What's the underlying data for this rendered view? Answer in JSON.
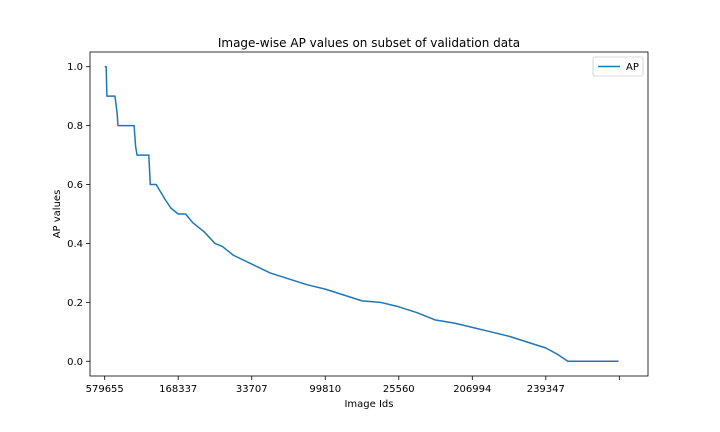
{
  "chart_data": {
    "type": "line",
    "title": "Image-wise AP values on subset of validation data",
    "xlabel": "Image Ids",
    "ylabel": "AP values",
    "categories": [
      "579655",
      "168337",
      "33707",
      "99810",
      "25560",
      "206994",
      "239347",
      ""
    ],
    "ylim": [
      -0.05,
      1.05
    ],
    "xlim": [
      -20,
      739
    ],
    "yticks": [
      0.0,
      0.2,
      0.4,
      0.6,
      0.8,
      1.0
    ],
    "ytick_labels": [
      "0.0",
      "0.2",
      "0.4",
      "0.6",
      "0.8",
      "1.0"
    ],
    "xticks": [
      0,
      100,
      200,
      300,
      400,
      500,
      600,
      700
    ],
    "grid": false,
    "legend_position": "top-right",
    "series": [
      {
        "name": "AP",
        "color": "#1f77b4",
        "x": [
          0,
          2,
          3,
          14,
          16,
          17,
          18,
          29,
          30,
          31,
          40,
          42,
          44,
          50,
          60,
          61,
          62,
          70,
          82,
          90,
          100,
          105,
          110,
          120,
          135,
          150,
          160,
          175,
          200,
          225,
          250,
          275,
          300,
          325,
          350,
          375,
          400,
          425,
          450,
          475,
          500,
          525,
          550,
          575,
          600,
          615,
          630,
          660,
          699
        ],
        "y": [
          1.0,
          1.0,
          0.9,
          0.9,
          0.86,
          0.84,
          0.8,
          0.8,
          0.8,
          0.8,
          0.8,
          0.73,
          0.7,
          0.7,
          0.7,
          0.65,
          0.6,
          0.6,
          0.55,
          0.52,
          0.5,
          0.5,
          0.5,
          0.47,
          0.44,
          0.4,
          0.39,
          0.36,
          0.33,
          0.3,
          0.28,
          0.26,
          0.245,
          0.225,
          0.205,
          0.2,
          0.185,
          0.165,
          0.14,
          0.13,
          0.115,
          0.1,
          0.085,
          0.065,
          0.045,
          0.025,
          0.0,
          0.0,
          0.0
        ]
      }
    ]
  }
}
